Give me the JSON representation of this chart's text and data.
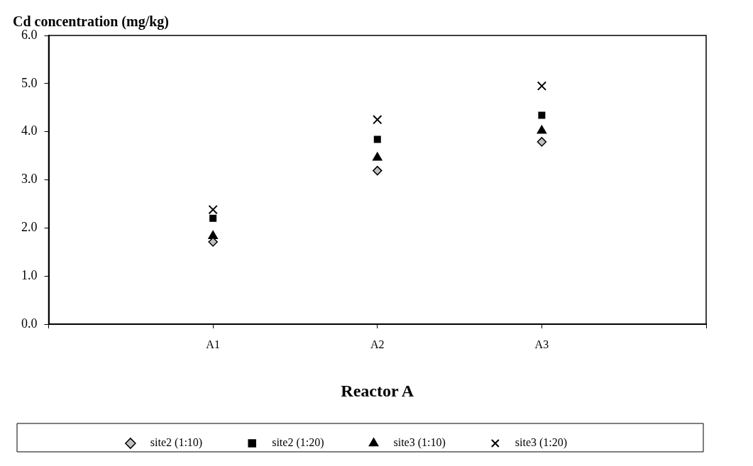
{
  "chart_data": {
    "type": "scatter",
    "ylabel": "Cd concentration (mg/kg)",
    "xlabel": "Reactor A",
    "categories": [
      null,
      "A1",
      "A2",
      "A3",
      null
    ],
    "ylim": [
      0,
      6
    ],
    "yticks": [
      {
        "value": 0,
        "label": "0.0"
      },
      {
        "value": 1,
        "label": "1.0"
      },
      {
        "value": 2,
        "label": "2.0"
      },
      {
        "value": 3,
        "label": "3.0"
      },
      {
        "value": 4,
        "label": "4.0"
      },
      {
        "value": 5,
        "label": "5.0"
      },
      {
        "value": 6,
        "label": "6.0"
      }
    ],
    "grid": false,
    "legend": "bottom",
    "series": [
      {
        "name": "site2 (1:10)",
        "color": "#c0c0c0",
        "marker": "diamond",
        "values": [
          null,
          1.71,
          3.19,
          3.79,
          null
        ]
      },
      {
        "name": "site2 (1:20)",
        "color": "#000000",
        "marker": "square",
        "values": [
          null,
          2.2,
          3.84,
          4.34,
          null
        ]
      },
      {
        "name": "site3 (1:10)",
        "color": "#000000",
        "marker": "triangle",
        "values": [
          null,
          1.83,
          3.46,
          4.02,
          null
        ]
      },
      {
        "name": "site3 (1:20)",
        "color": "#000000",
        "marker": "cross",
        "values": [
          null,
          2.38,
          4.25,
          4.95,
          null
        ]
      }
    ]
  }
}
